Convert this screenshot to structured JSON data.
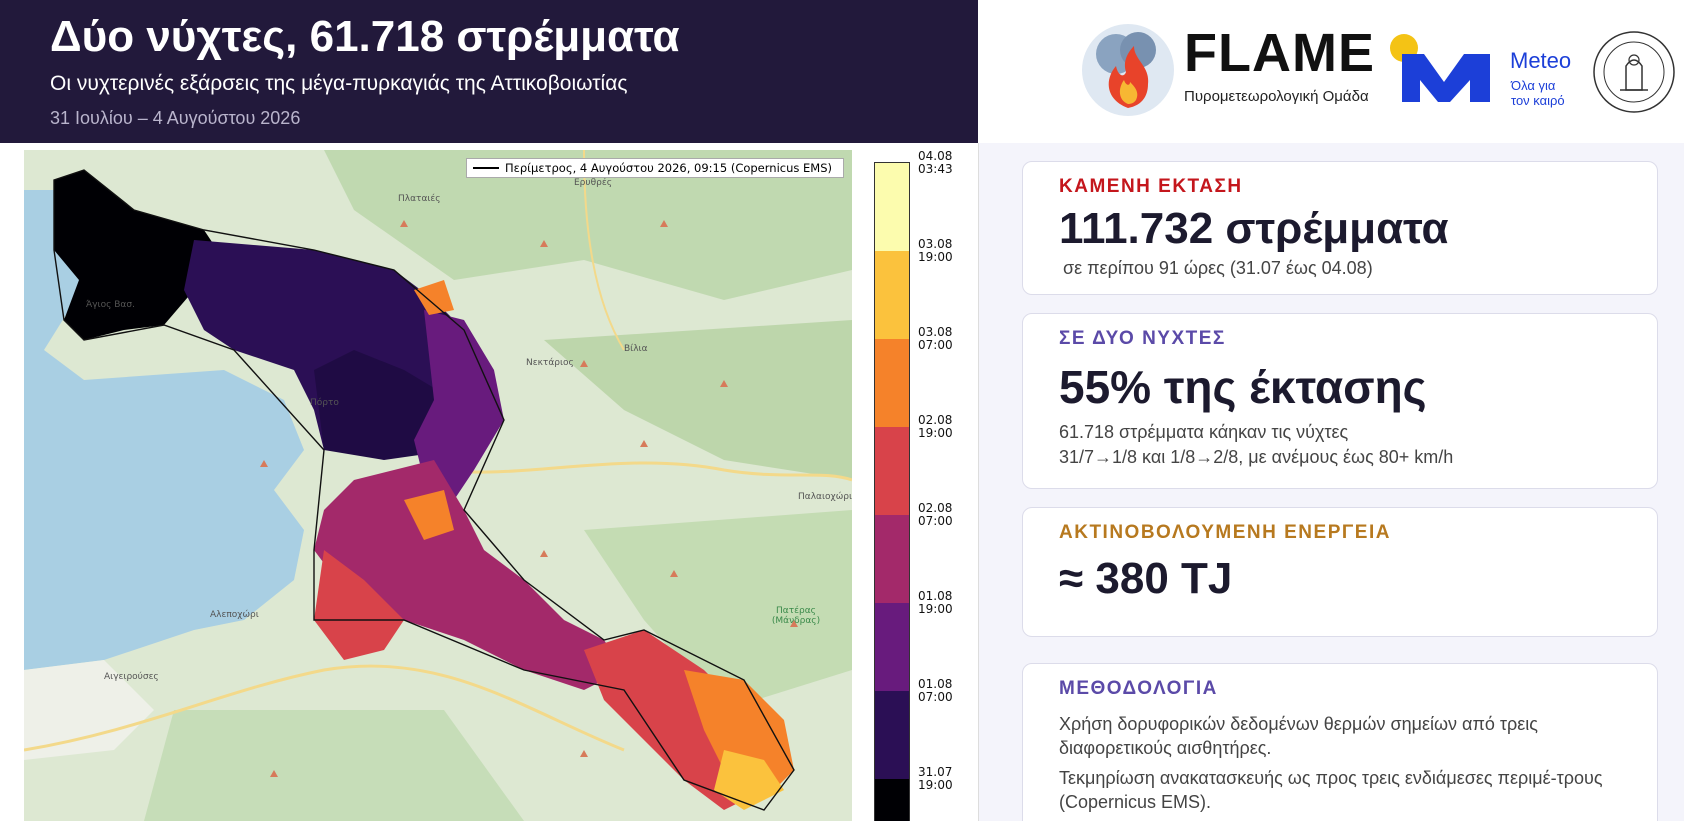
{
  "header": {
    "title": "Δύο νύχτες, 61.718 στρέμματα",
    "subtitle": "Οι νυχτερινές εξάρσεις της μέγα-πυρκαγιάς της Αττικοβοιωτίας",
    "dates": "31 Ιουλίου – 4 Αυγούστου 2026"
  },
  "logos": {
    "flame_name": "FLAME",
    "flame_tagline": "Πυρομετεωρολογική Ομάδα",
    "meteo_name": "Meteo",
    "meteo_tagline_1": "Όλα για",
    "meteo_tagline_2": "τον καιρό"
  },
  "cards": {
    "burned": {
      "label": "ΚΑΜΕΝΗ ΕΚΤΑΣΗ",
      "value": "111.732 στρέμματα",
      "note": "σε περίπου 91 ώρες (31.07 έως 04.08)",
      "color": "#c4161c"
    },
    "nights": {
      "label": "ΣΕ ΔΥΟ ΝΥΧΤΕΣ",
      "value": "55% της έκτασης",
      "note1": "61.718 στρέμματα κάηκαν τις νύχτες",
      "note2": "31/7→1/8 και 1/8→2/8, με ανέμους έως 80+ km/h",
      "color": "#5b4aa8"
    },
    "energy": {
      "label": "ΑΚΤΙΝΟΒΟΛΟΥΜΕΝΗ ΕΝΕΡΓΕΙΑ",
      "value": "≈ 380 TJ",
      "color": "#b7791f"
    },
    "method": {
      "label": "ΜΕΘΟΔΟΛΟΓΙΑ",
      "p1": "Χρήση δορυφορικών δεδομένων θερμών σημείων από τρεις διαφορετικούς αισθητήρες.",
      "p2": "Τεκμηρίωση ανακατασκευής ως προς τρεις ενδιάμεσες περιμέ-τρους (Copernicus EMS).",
      "color": "#5b4aa8"
    }
  },
  "map": {
    "legend": "Περίμετρος, 4 Αυγούστου 2026, 09:15 (Copernicus EMS)",
    "places": [
      "Πλαταιές",
      "Ερυθρές",
      "Άγιος Βασ.",
      "Νεκτάριος",
      "Βίλια",
      "Πόρτο",
      "Παλαιοχώρι",
      "Αλεποχώρι",
      "Αιγειρούσες",
      "Πατέρας (Μάνδρας)"
    ],
    "colorbar": {
      "ticks": [
        {
          "d": "04.08",
          "t": "03:43"
        },
        {
          "d": "03.08",
          "t": "19:00"
        },
        {
          "d": "03.08",
          "t": "07:00"
        },
        {
          "d": "02.08",
          "t": "19:00"
        },
        {
          "d": "02.08",
          "t": "07:00"
        },
        {
          "d": "01.08",
          "t": "19:00"
        },
        {
          "d": "01.08",
          "t": "07:00"
        },
        {
          "d": "31.07",
          "t": "19:00"
        }
      ],
      "colors": [
        "#fcfcae",
        "#fbc23d",
        "#f5822a",
        "#d8434a",
        "#a3296a",
        "#681b7d",
        "#2b0f55",
        "#000004"
      ]
    }
  }
}
